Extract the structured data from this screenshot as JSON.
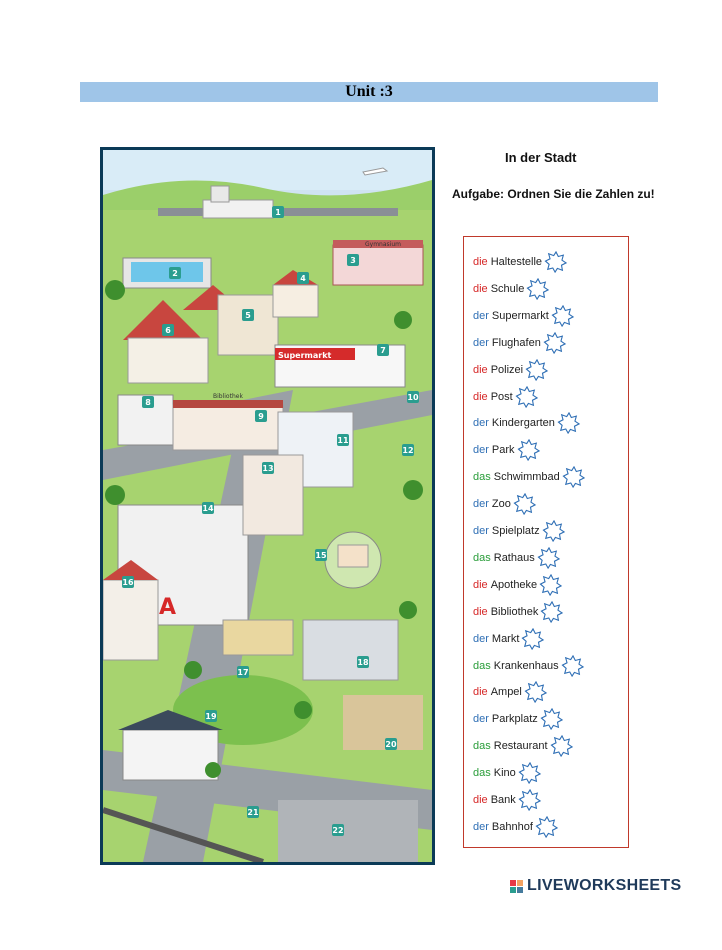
{
  "header": {
    "unit": "Unit :3"
  },
  "exercise": {
    "title": "In der Stadt",
    "task": "Aufgabe: Ordnen Sie die Zahlen zu!"
  },
  "map_labels": {
    "gymnasium": "Gymnasium",
    "supermarkt": "Supermarkt",
    "bibliothek": "Bibliothek"
  },
  "map_numbers": [
    "1",
    "2",
    "3",
    "4",
    "5",
    "6",
    "7",
    "8",
    "9",
    "10",
    "11",
    "12",
    "13",
    "14",
    "15",
    "16",
    "17",
    "18",
    "19",
    "20",
    "21",
    "22"
  ],
  "vocab": [
    {
      "article": "die",
      "noun": "Haltestelle"
    },
    {
      "article": "die",
      "noun": "Schule"
    },
    {
      "article": "der",
      "noun": "Supermarkt"
    },
    {
      "article": "der",
      "noun": "Flughafen"
    },
    {
      "article": "die",
      "noun": "Polizei"
    },
    {
      "article": "die",
      "noun": "Post"
    },
    {
      "article": "der",
      "noun": "Kindergarten"
    },
    {
      "article": "der",
      "noun": "Park"
    },
    {
      "article": "das",
      "noun": "Schwimmbad"
    },
    {
      "article": "der",
      "noun": "Zoo"
    },
    {
      "article": "der",
      "noun": "Spielplatz"
    },
    {
      "article": "das",
      "noun": "Rathaus"
    },
    {
      "article": "die",
      "noun": "Apotheke"
    },
    {
      "article": "die",
      "noun": "Bibliothek"
    },
    {
      "article": "der",
      "noun": "Markt"
    },
    {
      "article": "das",
      "noun": "Krankenhaus"
    },
    {
      "article": "die",
      "noun": "Ampel"
    },
    {
      "article": "der",
      "noun": "Parkplatz"
    },
    {
      "article": "das",
      "noun": "Restaurant"
    },
    {
      "article": "das",
      "noun": "Kino"
    },
    {
      "article": "die",
      "noun": "Bank"
    },
    {
      "article": "der",
      "noun": "Bahnhof"
    }
  ],
  "colors": {
    "article_die": "#d62828",
    "article_der": "#2f6fb5",
    "article_das": "#2a9d3a",
    "list_border": "#c0392b",
    "unit_bar": "#9fc5e8"
  },
  "footer": {
    "brand": "LIVEWORKSHEETS"
  }
}
